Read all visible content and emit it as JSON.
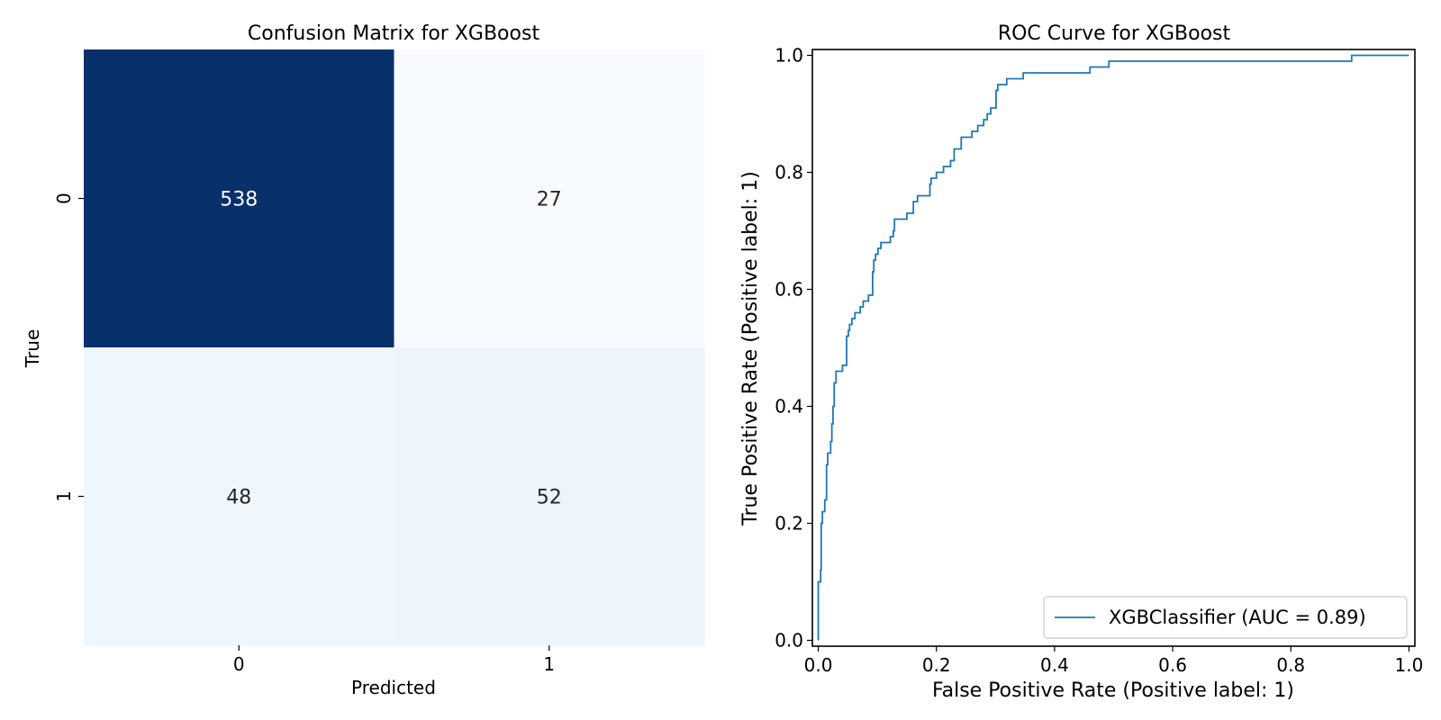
{
  "chart_data": [
    {
      "type": "heatmap",
      "title": "Confusion Matrix for XGBoost",
      "xlabel": "Predicted",
      "ylabel": "True",
      "x_categories": [
        "0",
        "1"
      ],
      "y_categories": [
        "0",
        "1"
      ],
      "values": [
        [
          538,
          27
        ],
        [
          48,
          52
        ]
      ],
      "colormap": "Blues",
      "colorbar": false
    },
    {
      "type": "line",
      "title": "ROC Curve for XGBoost",
      "xlabel": "False Positive Rate (Positive label: 1)",
      "ylabel": "True Positive Rate (Positive label: 1)",
      "xlim": [
        -0.01,
        1.01
      ],
      "ylim": [
        -0.01,
        1.01
      ],
      "xticks": [
        "0.0",
        "0.2",
        "0.4",
        "0.6",
        "0.8",
        "1.0"
      ],
      "yticks": [
        "0.0",
        "0.2",
        "0.4",
        "0.6",
        "0.8",
        "1.0"
      ],
      "legend_position": "lower right",
      "series": [
        {
          "name": "XGBClassifier (AUC = 0.89)",
          "color": "#1f77b4",
          "points": [
            [
              0.0,
              0.0
            ],
            [
              0.0,
              0.1
            ],
            [
              0.004,
              0.1
            ],
            [
              0.004,
              0.12
            ],
            [
              0.005,
              0.12
            ],
            [
              0.005,
              0.2
            ],
            [
              0.007,
              0.2
            ],
            [
              0.007,
              0.22
            ],
            [
              0.011,
              0.22
            ],
            [
              0.011,
              0.24
            ],
            [
              0.014,
              0.24
            ],
            [
              0.014,
              0.3
            ],
            [
              0.016,
              0.3
            ],
            [
              0.016,
              0.32
            ],
            [
              0.021,
              0.32
            ],
            [
              0.021,
              0.34
            ],
            [
              0.023,
              0.34
            ],
            [
              0.023,
              0.37
            ],
            [
              0.025,
              0.37
            ],
            [
              0.025,
              0.4
            ],
            [
              0.027,
              0.4
            ],
            [
              0.027,
              0.44
            ],
            [
              0.03,
              0.44
            ],
            [
              0.03,
              0.46
            ],
            [
              0.041,
              0.46
            ],
            [
              0.041,
              0.47
            ],
            [
              0.048,
              0.47
            ],
            [
              0.048,
              0.52
            ],
            [
              0.051,
              0.52
            ],
            [
              0.051,
              0.53
            ],
            [
              0.053,
              0.53
            ],
            [
              0.053,
              0.54
            ],
            [
              0.057,
              0.54
            ],
            [
              0.057,
              0.55
            ],
            [
              0.062,
              0.55
            ],
            [
              0.062,
              0.56
            ],
            [
              0.071,
              0.56
            ],
            [
              0.071,
              0.57
            ],
            [
              0.076,
              0.57
            ],
            [
              0.076,
              0.58
            ],
            [
              0.085,
              0.58
            ],
            [
              0.085,
              0.59
            ],
            [
              0.092,
              0.59
            ],
            [
              0.092,
              0.63
            ],
            [
              0.094,
              0.63
            ],
            [
              0.094,
              0.65
            ],
            [
              0.097,
              0.65
            ],
            [
              0.097,
              0.66
            ],
            [
              0.101,
              0.66
            ],
            [
              0.101,
              0.67
            ],
            [
              0.106,
              0.67
            ],
            [
              0.106,
              0.68
            ],
            [
              0.122,
              0.68
            ],
            [
              0.122,
              0.69
            ],
            [
              0.127,
              0.69
            ],
            [
              0.127,
              0.7
            ],
            [
              0.129,
              0.7
            ],
            [
              0.129,
              0.72
            ],
            [
              0.15,
              0.72
            ],
            [
              0.15,
              0.73
            ],
            [
              0.161,
              0.73
            ],
            [
              0.161,
              0.75
            ],
            [
              0.168,
              0.75
            ],
            [
              0.168,
              0.76
            ],
            [
              0.189,
              0.76
            ],
            [
              0.189,
              0.78
            ],
            [
              0.191,
              0.78
            ],
            [
              0.191,
              0.79
            ],
            [
              0.2,
              0.79
            ],
            [
              0.2,
              0.8
            ],
            [
              0.212,
              0.8
            ],
            [
              0.212,
              0.81
            ],
            [
              0.224,
              0.81
            ],
            [
              0.224,
              0.82
            ],
            [
              0.23,
              0.82
            ],
            [
              0.23,
              0.84
            ],
            [
              0.242,
              0.84
            ],
            [
              0.242,
              0.86
            ],
            [
              0.26,
              0.86
            ],
            [
              0.26,
              0.87
            ],
            [
              0.27,
              0.87
            ],
            [
              0.27,
              0.88
            ],
            [
              0.28,
              0.88
            ],
            [
              0.28,
              0.89
            ],
            [
              0.286,
              0.89
            ],
            [
              0.286,
              0.9
            ],
            [
              0.292,
              0.9
            ],
            [
              0.292,
              0.91
            ],
            [
              0.301,
              0.91
            ],
            [
              0.301,
              0.94
            ],
            [
              0.304,
              0.94
            ],
            [
              0.304,
              0.95
            ],
            [
              0.319,
              0.95
            ],
            [
              0.319,
              0.96
            ],
            [
              0.347,
              0.96
            ],
            [
              0.347,
              0.97
            ],
            [
              0.46,
              0.97
            ],
            [
              0.46,
              0.98
            ],
            [
              0.492,
              0.98
            ],
            [
              0.492,
              0.99
            ],
            [
              0.903,
              0.99
            ],
            [
              0.903,
              1.0
            ],
            [
              1.0,
              1.0
            ]
          ]
        }
      ]
    }
  ]
}
